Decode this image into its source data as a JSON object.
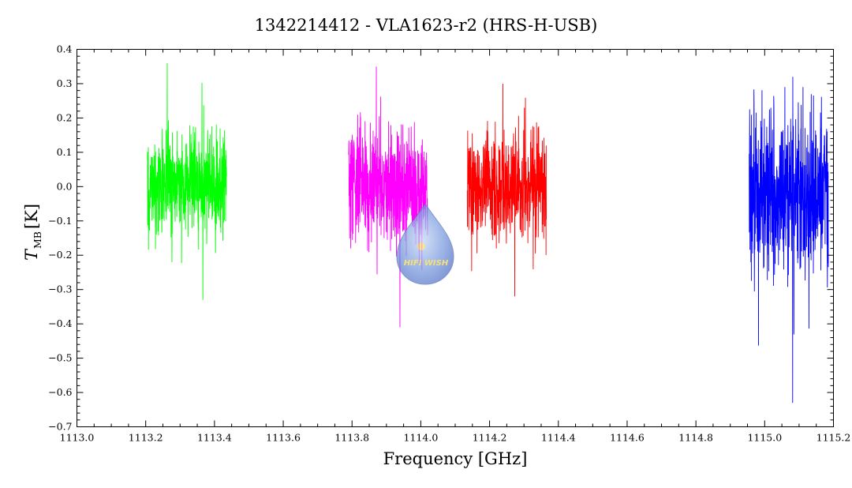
{
  "chart_data": {
    "type": "line",
    "title": "1342214412 - VLA1623-r2 (HRS-H-USB)",
    "xlabel": "Frequency [GHz]",
    "ylabel_main": "T",
    "ylabel_sub": "MB",
    "ylabel_unit": "[K]",
    "xlim": [
      1113.0,
      1115.2
    ],
    "ylim": [
      -0.7,
      0.4
    ],
    "x_ticks": [
      "1113.0",
      "1113.2",
      "1113.4",
      "1113.6",
      "1113.8",
      "1114.0",
      "1114.2",
      "1114.4",
      "1114.6",
      "1114.8",
      "1115.0",
      "1115.2"
    ],
    "y_ticks": [
      "0.4",
      "0.3",
      "0.2",
      "0.1",
      "0.0",
      "-0.1",
      "-0.2",
      "-0.3",
      "-0.4",
      "-0.5",
      "-0.6",
      "-0.7"
    ],
    "grid": false,
    "series": [
      {
        "color": "#00ff00",
        "x_range": [
          1113.205,
          1113.435
        ],
        "y_center": 0.01,
        "noise_sigma": 0.08,
        "y_max": 0.36,
        "y_min": -0.33
      },
      {
        "color": "#ff00ff",
        "x_range": [
          1113.79,
          1114.02
        ],
        "y_center": 0.0,
        "noise_sigma": 0.09,
        "y_max": 0.35,
        "y_min": -0.41
      },
      {
        "color": "#ff0000",
        "x_range": [
          1114.135,
          1114.365
        ],
        "y_center": 0.0,
        "noise_sigma": 0.08,
        "y_max": 0.3,
        "y_min": -0.32
      },
      {
        "color": "#0000ff",
        "x_range": [
          1114.955,
          1115.185
        ],
        "y_center": -0.02,
        "noise_sigma": 0.12,
        "y_max": 0.32,
        "y_min": -0.63
      }
    ]
  },
  "watermark": {
    "text": "HIFI WISH"
  }
}
